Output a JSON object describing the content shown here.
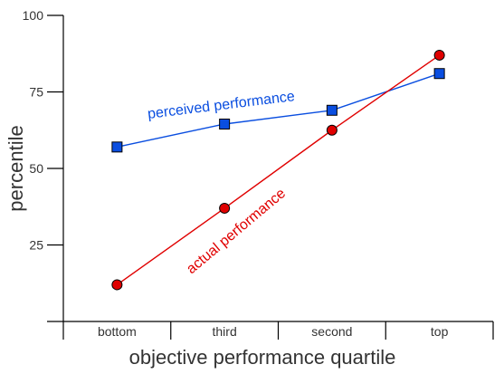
{
  "chart_data": {
    "type": "line",
    "title": "",
    "xlabel": "objective performance quartile",
    "ylabel": "percentile",
    "categories": [
      "bottom",
      "third",
      "second",
      "top"
    ],
    "yticks": [
      25,
      50,
      75,
      100
    ],
    "ylim": [
      0,
      100
    ],
    "grid": false,
    "legend": "none",
    "series": [
      {
        "name": "perceived performance",
        "values": [
          57,
          64.5,
          69,
          81
        ],
        "color": "#0a4ee0",
        "marker": "square"
      },
      {
        "name": "actual performance",
        "values": [
          12,
          37,
          62.5,
          87
        ],
        "color": "#e00000",
        "marker": "circle"
      }
    ]
  }
}
